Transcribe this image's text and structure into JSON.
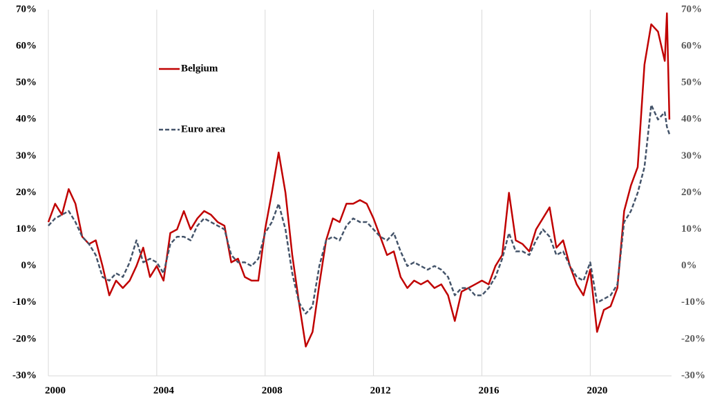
{
  "chart_data": {
    "type": "line",
    "x": [
      2000,
      2000.25,
      2000.5,
      2000.75,
      2001,
      2001.25,
      2001.5,
      2001.75,
      2002,
      2002.25,
      2002.5,
      2002.75,
      2003,
      2003.25,
      2003.5,
      2003.75,
      2004,
      2004.25,
      2004.5,
      2004.75,
      2005,
      2005.25,
      2005.5,
      2005.75,
      2006,
      2006.25,
      2006.5,
      2006.75,
      2007,
      2007.25,
      2007.5,
      2007.75,
      2008,
      2008.25,
      2008.5,
      2008.75,
      2009,
      2009.25,
      2009.5,
      2009.75,
      2010,
      2010.25,
      2010.5,
      2010.75,
      2011,
      2011.25,
      2011.5,
      2011.75,
      2012,
      2012.25,
      2012.5,
      2012.75,
      2013,
      2013.25,
      2013.5,
      2013.75,
      2014,
      2014.25,
      2014.5,
      2014.75,
      2015,
      2015.25,
      2015.5,
      2015.75,
      2016,
      2016.25,
      2016.5,
      2016.75,
      2017,
      2017.25,
      2017.5,
      2017.75,
      2018,
      2018.25,
      2018.5,
      2018.75,
      2019,
      2019.25,
      2019.5,
      2019.75,
      2020,
      2020.25,
      2020.5,
      2020.75,
      2021,
      2021.25,
      2021.5,
      2021.75,
      2022,
      2022.25,
      2022.5,
      2022.75,
      2022.83,
      2022.92
    ],
    "series": [
      {
        "name": "Belgium",
        "color": "#c00000",
        "dash": false,
        "values": [
          12,
          17,
          14,
          21,
          17,
          8,
          6,
          7,
          0,
          -8,
          -4,
          -6,
          -4,
          0,
          5,
          -3,
          0,
          -4,
          9,
          10,
          15,
          10,
          13,
          15,
          14,
          12,
          11,
          1,
          2,
          -3,
          -4,
          -4,
          10,
          20,
          31,
          20,
          3,
          -10,
          -22,
          -18,
          -5,
          7,
          13,
          12,
          17,
          17,
          18,
          17,
          13,
          8,
          3,
          4,
          -3,
          -6,
          -4,
          -5,
          -4,
          -6,
          -5,
          -8,
          -15,
          -7,
          -6,
          -5,
          -4,
          -5,
          0,
          3,
          20,
          7,
          6,
          4,
          10,
          13,
          16,
          5,
          7,
          0,
          -5,
          -8,
          -1,
          -18,
          -12,
          -11,
          -6,
          15,
          22,
          27,
          55,
          66,
          64,
          56,
          69,
          40
        ]
      },
      {
        "name": "Euro area",
        "color": "#44546a",
        "dash": true,
        "values": [
          11,
          13,
          14,
          15,
          12,
          8,
          6,
          3,
          -3,
          -4,
          -2,
          -3,
          1,
          7,
          1,
          2,
          1,
          -2,
          6,
          8,
          8,
          7,
          11,
          13,
          12,
          11,
          10,
          3,
          1,
          1,
          0,
          2,
          9,
          12,
          17,
          10,
          -2,
          -10,
          -13,
          -11,
          0,
          7,
          8,
          7,
          11,
          13,
          12,
          12,
          10,
          8,
          7,
          9,
          4,
          0,
          1,
          0,
          -1,
          0,
          -1,
          -3,
          -8,
          -6,
          -6,
          -8,
          -8,
          -6,
          -3,
          2,
          9,
          4,
          4,
          3,
          7,
          10,
          8,
          3,
          4,
          0,
          -3,
          -4,
          1,
          -10,
          -9,
          -8,
          -5,
          12,
          15,
          20,
          27,
          44,
          40,
          42,
          38,
          36
        ]
      }
    ],
    "xlim": [
      2000,
      2023
    ],
    "xticks": [
      2000,
      2004,
      2008,
      2012,
      2016,
      2020
    ],
    "ylim": [
      -30,
      70
    ],
    "yticks": [
      {
        "value": -30,
        "label": "-30%"
      },
      {
        "value": -20,
        "label": "-20%"
      },
      {
        "value": -10,
        "label": "-10%"
      },
      {
        "value": 0,
        "label": "0%"
      },
      {
        "value": 10,
        "label": "10%"
      },
      {
        "value": 20,
        "label": "20%"
      },
      {
        "value": 30,
        "label": "30%"
      },
      {
        "value": 40,
        "label": "40%"
      },
      {
        "value": 50,
        "label": "50%"
      },
      {
        "value": 60,
        "label": "60%"
      },
      {
        "value": 70,
        "label": "70%"
      }
    ],
    "y2lim": [
      -30,
      70
    ],
    "y2ticks": [
      {
        "value": -30,
        "label": "-30%"
      },
      {
        "value": -20,
        "label": "-20%"
      },
      {
        "value": -10,
        "label": "-10%"
      },
      {
        "value": 0,
        "label": "0%"
      },
      {
        "value": 10,
        "label": "10%"
      },
      {
        "value": 20,
        "label": "20%"
      },
      {
        "value": 30,
        "label": "30%"
      },
      {
        "value": 40,
        "label": "40%"
      },
      {
        "value": 50,
        "label": "50%"
      },
      {
        "value": 60,
        "label": "60%"
      },
      {
        "value": 70,
        "label": "70%"
      }
    ],
    "grid": true,
    "legend": "upper left"
  }
}
